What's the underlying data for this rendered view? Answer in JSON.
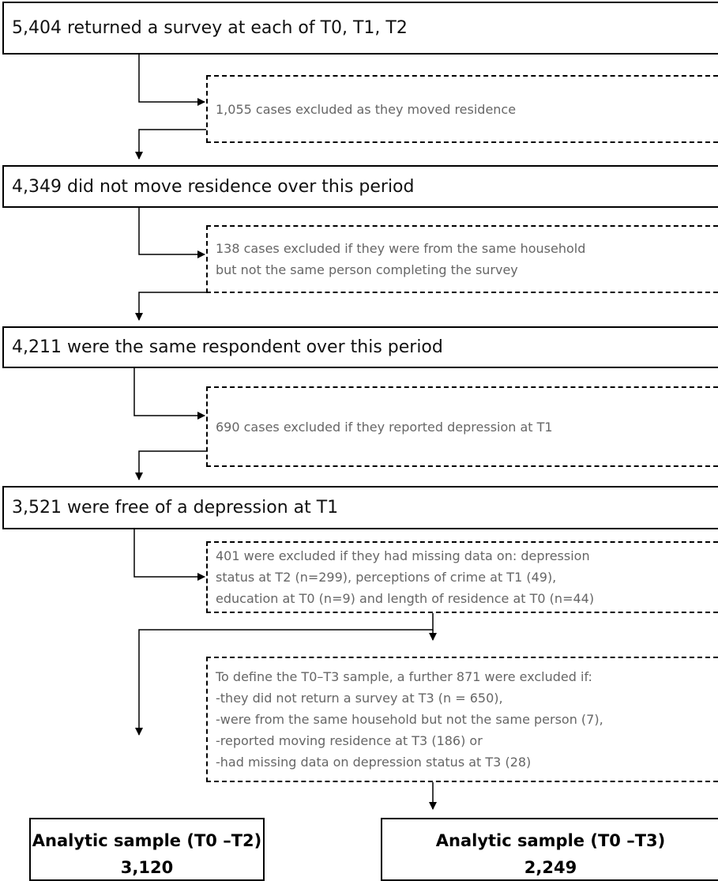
{
  "stages": [
    {
      "text": "5,404 returned a survey at each of T0, T1, T2"
    },
    {
      "text": "4,349 did not move residence over this period"
    },
    {
      "text": "4,211 were the same respondent over this period"
    },
    {
      "text": "3,521 were free of a depression at T1"
    }
  ],
  "exclusions": [
    {
      "text": "1,055 cases excluded as they moved residence"
    },
    {
      "text": "138 cases excluded if they were from the same household\nbut not the same person completing the survey"
    },
    {
      "text": "690 cases excluded if they reported depression at T1"
    },
    {
      "text": "401 were excluded if they had missing data on: depression\nstatus at T2 (n=299), perceptions of crime at T1 (49),\neducation at T0 (n=9) and length of residence at T0 (n=44)"
    },
    {
      "text": "To define the T0–T3 sample, a further 871 were excluded if:\n-they did not return a survey at T3 (n = 650),\n-were from the same household but not the same person (7),\n-reported moving residence at T3 (186) or\n-had missing data on depression status at T3 (28)"
    }
  ],
  "finals": [
    {
      "title": "Analytic sample (T0 –T2)",
      "value": "3,120"
    },
    {
      "title": "Analytic sample (T0 –T3)",
      "value": "2,249"
    }
  ]
}
